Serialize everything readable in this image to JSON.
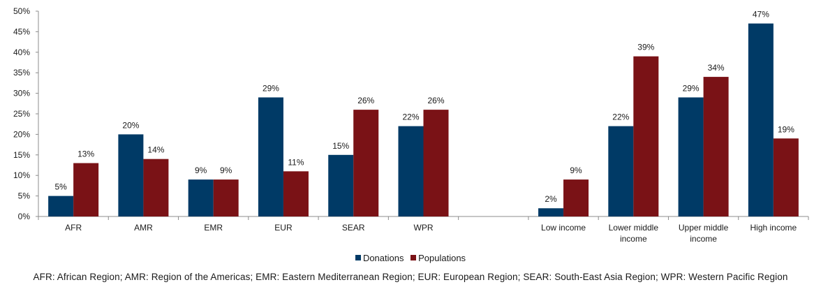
{
  "chart_data": {
    "type": "bar",
    "categories": [
      "AFR",
      "AMR",
      "EMR",
      "EUR",
      "SEAR",
      "WPR",
      "Low income",
      "Lower middle income",
      "Upper middle income",
      "High income"
    ],
    "series": [
      {
        "name": "Donations",
        "color": "#003a66",
        "values": [
          5,
          20,
          9,
          29,
          15,
          22,
          2,
          22,
          29,
          47
        ]
      },
      {
        "name": "Populations",
        "color": "#7a1216",
        "values": [
          13,
          14,
          9,
          11,
          26,
          26,
          9,
          39,
          34,
          19
        ]
      }
    ],
    "data_labels": {
      "Donations": [
        "5%",
        "20%",
        "9%",
        "29%",
        "15%",
        "22%",
        "2%",
        "22%",
        "29%",
        "47%"
      ],
      "Populations": [
        "13%",
        "14%",
        "9%",
        "11%",
        "26%",
        "26%",
        "9%",
        "39%",
        "34%",
        "19%"
      ]
    },
    "category_labels": [
      [
        "AFR"
      ],
      [
        "AMR"
      ],
      [
        "EMR"
      ],
      [
        "EUR"
      ],
      [
        "SEAR"
      ],
      [
        "WPR"
      ],
      [
        "Low income"
      ],
      [
        "Lower middle",
        "income"
      ],
      [
        "Upper middle",
        "income"
      ],
      [
        "High income"
      ]
    ],
    "yticks": [
      "0%",
      "5%",
      "10%",
      "15%",
      "20%",
      "25%",
      "30%",
      "35%",
      "40%",
      "45%",
      "50%"
    ],
    "ylim": [
      0,
      50
    ],
    "grid": false,
    "legend_position": "bottom-center"
  },
  "legend": {
    "donations_label": "Donations",
    "populations_label": "Populations",
    "donations_color": "#003a66",
    "populations_color": "#7a1216"
  },
  "footnote": "AFR: African Region; AMR: Region of the Americas; EMR: Eastern Mediterranean Region; EUR: European Region; SEAR: South-East Asia Region; WPR: Western Pacific Region"
}
